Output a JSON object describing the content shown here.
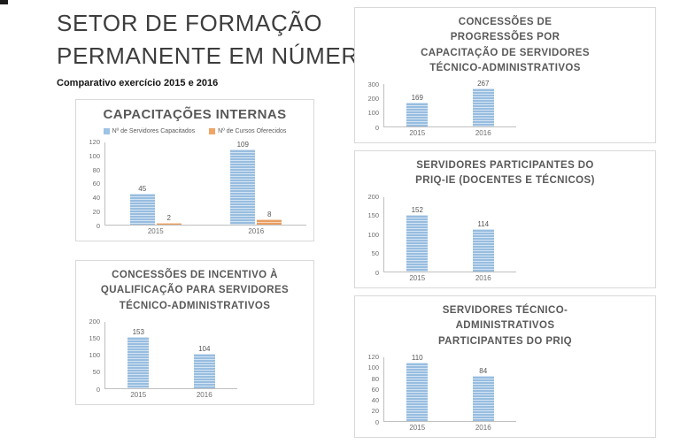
{
  "page": {
    "title_line1": "SETOR DE FORMAÇÃO",
    "title_line2": "PERMANENTE EM NÚMEROS",
    "subtitle": "Comparativo exercício 2015 e 2016"
  },
  "colors": {
    "bar_blue": "#9dc3e6",
    "bar_orange": "#f0a466",
    "chart_title_gray": "#595959",
    "axis_line_gray": "#bfbfbf",
    "box_border_gray": "#d9d9d9",
    "main_title_gray": "#3d3d3d"
  },
  "chart_data": [
    {
      "id": "capacitacoes-internas",
      "type": "bar",
      "title": "CAPACITAÇÕES INTERNAS",
      "categories": [
        "2015",
        "2016"
      ],
      "series": [
        {
          "name": "Nº de Servidores Capacitados",
          "color": "#9dc3e6",
          "values": [
            45,
            109
          ]
        },
        {
          "name": "Nº de Cursos Oferecidos",
          "color": "#f0a466",
          "values": [
            2,
            8
          ]
        }
      ],
      "ylim": [
        0,
        120
      ],
      "yticks": [
        0,
        20,
        40,
        60,
        80,
        100,
        120
      ],
      "legend_position": "top",
      "grid": false,
      "data_labels": true
    },
    {
      "id": "concessoes-progressoes-capacitacao",
      "type": "bar",
      "title": "CONCESSÕES DE PROGRESSÕES POR CAPACITAÇÃO DE SERVIDORES TÉCNICO-ADMINISTRATIVOS",
      "categories": [
        "2015",
        "2016"
      ],
      "series": [
        {
          "name": "",
          "color": "#9dc3e6",
          "values": [
            169,
            267
          ]
        }
      ],
      "ylim": [
        0,
        300
      ],
      "yticks": [
        0,
        100,
        200,
        300
      ],
      "legend_position": "none",
      "grid": false,
      "data_labels": true
    },
    {
      "id": "servidores-participantes-priq-ie",
      "type": "bar",
      "title": "SERVIDORES PARTICIPANTES DO PRIQ-IE (DOCENTES E TÉCNICOS)",
      "categories": [
        "2015",
        "2016"
      ],
      "series": [
        {
          "name": "",
          "color": "#9dc3e6",
          "values": [
            152,
            114
          ]
        }
      ],
      "ylim": [
        0,
        200
      ],
      "yticks": [
        0,
        50,
        100,
        150,
        200
      ],
      "legend_position": "none",
      "grid": false,
      "data_labels": true
    },
    {
      "id": "concessoes-incentivo-qualificacao",
      "type": "bar",
      "title": "CONCESSÕES DE INCENTIVO À QUALIFICAÇÃO PARA SERVIDORES TÉCNICO-ADMINISTRATIVOS",
      "categories": [
        "2015",
        "2016"
      ],
      "series": [
        {
          "name": "",
          "color": "#9dc3e6",
          "values": [
            153,
            104
          ]
        }
      ],
      "ylim": [
        0,
        200
      ],
      "yticks": [
        0,
        50,
        100,
        150,
        200
      ],
      "legend_position": "none",
      "grid": false,
      "data_labels": true
    },
    {
      "id": "servidores-tecnico-administrativos-priq",
      "type": "bar",
      "title": "SERVIDORES TÉCNICO-ADMINISTRATIVOS PARTICIPANTES DO PRIQ",
      "categories": [
        "2015",
        "2016"
      ],
      "series": [
        {
          "name": "",
          "color": "#9dc3e6",
          "values": [
            110,
            84
          ]
        }
      ],
      "ylim": [
        0,
        120
      ],
      "yticks": [
        0,
        20,
        40,
        60,
        80,
        100,
        120
      ],
      "legend_position": "none",
      "grid": false,
      "data_labels": true
    }
  ]
}
